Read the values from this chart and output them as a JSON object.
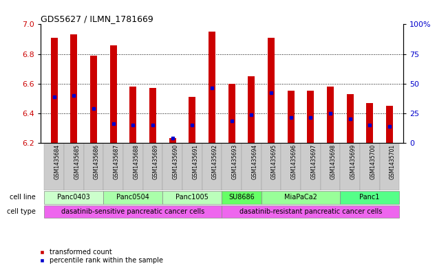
{
  "title": "GDS5627 / ILMN_1781669",
  "samples": [
    "GSM1435684",
    "GSM1435685",
    "GSM1435686",
    "GSM1435687",
    "GSM1435688",
    "GSM1435689",
    "GSM1435690",
    "GSM1435691",
    "GSM1435692",
    "GSM1435693",
    "GSM1435694",
    "GSM1435695",
    "GSM1435696",
    "GSM1435697",
    "GSM1435698",
    "GSM1435699",
    "GSM1435700",
    "GSM1435701"
  ],
  "bar_values": [
    6.91,
    6.93,
    6.79,
    6.86,
    6.58,
    6.57,
    6.23,
    6.51,
    6.95,
    6.6,
    6.65,
    6.91,
    6.55,
    6.55,
    6.58,
    6.53,
    6.47,
    6.45
  ],
  "blue_markers": [
    6.51,
    6.52,
    6.43,
    6.33,
    6.32,
    6.32,
    6.23,
    6.32,
    6.57,
    6.35,
    6.39,
    6.54,
    6.37,
    6.37,
    6.4,
    6.36,
    6.32,
    6.31
  ],
  "ymin": 6.2,
  "ymax": 7.0,
  "yticks": [
    6.2,
    6.4,
    6.6,
    6.8,
    7.0
  ],
  "right_yticks": [
    0,
    25,
    50,
    75,
    100
  ],
  "right_ytick_labels": [
    "0",
    "25",
    "50",
    "75",
    "100%"
  ],
  "bar_color": "#cc0000",
  "blue_color": "#0000cc",
  "cell_lines": [
    {
      "label": "Panc0403",
      "start": 0,
      "end": 3,
      "color": "#ccffcc"
    },
    {
      "label": "Panc0504",
      "start": 3,
      "end": 6,
      "color": "#aaffaa"
    },
    {
      "label": "Panc1005",
      "start": 6,
      "end": 9,
      "color": "#bbffbb"
    },
    {
      "label": "SU8686",
      "start": 9,
      "end": 11,
      "color": "#66ff66"
    },
    {
      "label": "MiaPaCa2",
      "start": 11,
      "end": 15,
      "color": "#99ff99"
    },
    {
      "label": "Panc1",
      "start": 15,
      "end": 18,
      "color": "#55ff88"
    }
  ],
  "cell_types": [
    {
      "label": "dasatinib-sensitive pancreatic cancer cells",
      "start": 0,
      "end": 9,
      "color": "#ee66ee"
    },
    {
      "label": "dasatinib-resistant pancreatic cancer cells",
      "start": 9,
      "end": 18,
      "color": "#ee66ee"
    }
  ],
  "legend_red": "transformed count",
  "legend_blue": "percentile rank within the sample",
  "bar_color_red": "#cc0000",
  "axis_left_color": "#cc0000",
  "axis_right_color": "#0000cc"
}
